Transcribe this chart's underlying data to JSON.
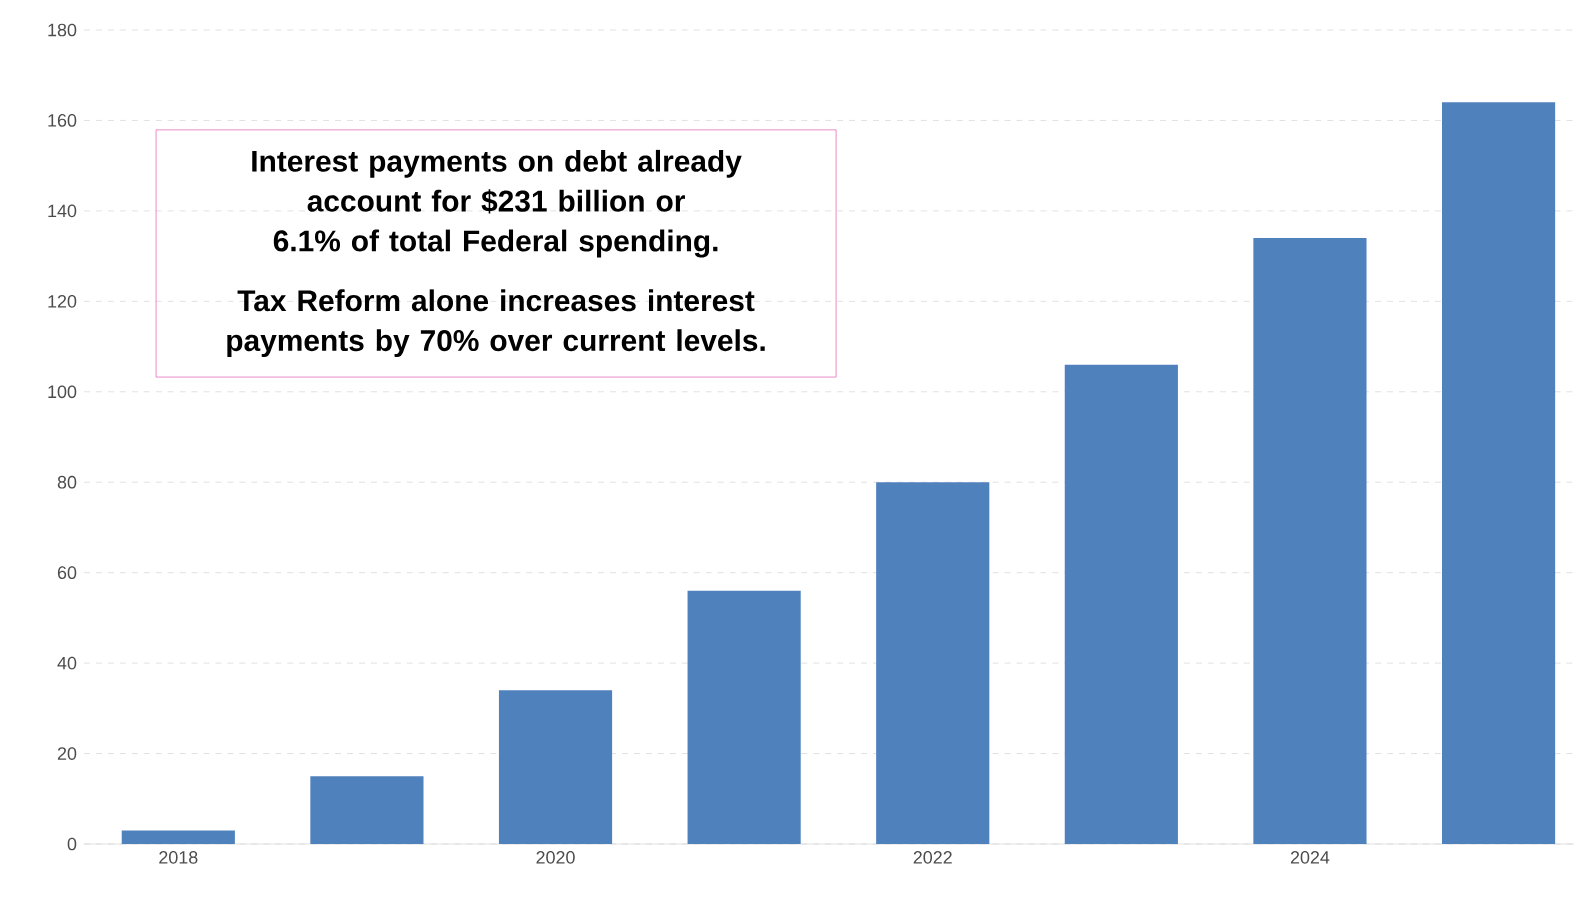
{
  "chart_data": {
    "type": "bar",
    "categories": [
      "2018",
      null,
      "2020",
      null,
      "2022",
      null,
      "2024",
      null
    ],
    "values": [
      3,
      15,
      34,
      56,
      80,
      106,
      134,
      164
    ],
    "color": "#4f81bd",
    "ylim": [
      0,
      180
    ],
    "yticks": [
      0,
      20,
      40,
      60,
      80,
      100,
      120,
      140,
      160,
      180
    ],
    "grid": "y",
    "annotations": [
      "Interest payments on debt already account for $231 billion or 6.1% of total Federal spending.",
      "Tax Reform alone increases interest payments by 70% over current levels."
    ]
  }
}
